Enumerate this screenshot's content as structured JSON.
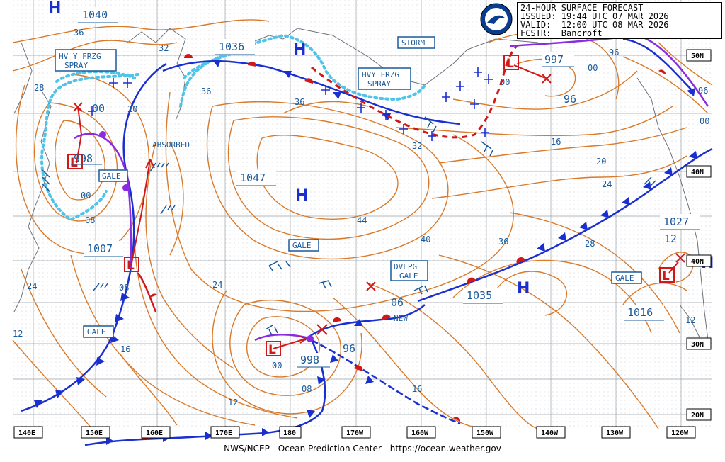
{
  "header": {
    "line1": "24-HOUR SURFACE FORECAST",
    "line2": "ISSUED: 19:44 UTC 07 MAR 2026",
    "line3": "VALID:  12:00 UTC 08 MAR 2026",
    "line4": "FCSTR:  Bancroft"
  },
  "footer": "NWS/NCEP - Ocean Prediction Center - https://ocean.weather.gov",
  "logo": "NOAA",
  "longitude_ticks": [
    "140E",
    "150E",
    "160E",
    "170E",
    "180",
    "170W",
    "160W",
    "150W",
    "140W",
    "130W",
    "120W"
  ],
  "latitude_ticks": [
    "50N",
    "40N",
    "30N",
    "20N"
  ],
  "pressure_centers": [
    {
      "type": "H",
      "value": "1040"
    },
    {
      "type": "H",
      "value": "1036"
    },
    {
      "type": "H",
      "value": "1047"
    },
    {
      "type": "H",
      "value": "1035"
    },
    {
      "type": "H",
      "value": "1027"
    },
    {
      "type": "L",
      "value": "998"
    },
    {
      "type": "L",
      "value": "1007"
    },
    {
      "type": "L",
      "value": "998"
    },
    {
      "type": "L",
      "value": "997"
    },
    {
      "type": "L",
      "value": "1016"
    }
  ],
  "boxed_labels": [
    "HV Y FRZG SPRAY",
    "HVY FRZG SPRAY",
    "STORM",
    "GALE",
    "GALE",
    "GALE",
    "DVLPG GALE",
    "GALE",
    "1040",
    "1036",
    "1047",
    "1035",
    "1016",
    "1027",
    "997",
    "1007",
    "998",
    "998"
  ],
  "text_labels": [
    "ABSORBED",
    "NEW",
    "00",
    "06",
    "96",
    "12"
  ],
  "isobar_labels": [
    "36",
    "32",
    "28",
    "36",
    "36",
    "00",
    "20",
    "32",
    "16",
    "20",
    "24",
    "44",
    "40",
    "36",
    "28",
    "24",
    "08",
    "16",
    "24",
    "12",
    "08",
    "96",
    "16",
    "12",
    "96",
    "00",
    "96",
    "08",
    "00",
    "00",
    "12"
  ],
  "colors": {
    "isobar": "#d97a2b",
    "cold_front": "#1a2fd0",
    "warm_front": "#d01818",
    "occluded": "#8a2be2",
    "ice": "#4fc3e8",
    "label": "#1a5a9a",
    "grid": "#9aa0a8"
  }
}
